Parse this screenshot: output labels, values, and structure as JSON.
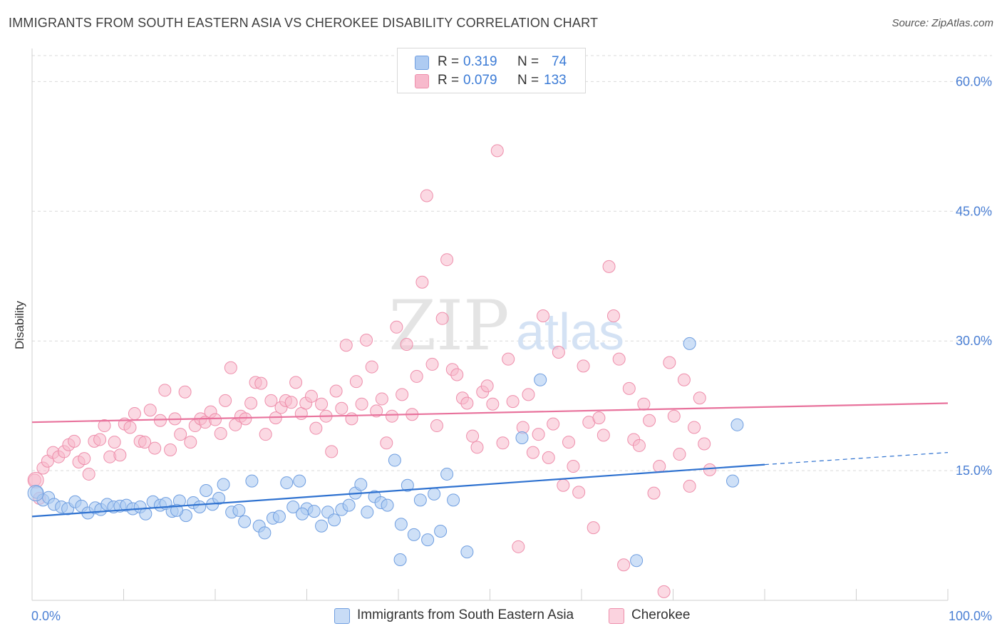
{
  "title": "IMMIGRANTS FROM SOUTH EASTERN ASIA VS CHEROKEE DISABILITY CORRELATION CHART",
  "source": "Source: ZipAtlas.com",
  "watermark": {
    "zip": "ZIP",
    "atlas": "atlas"
  },
  "legend": {
    "series1": {
      "r_label": "R =",
      "r_value": "0.319",
      "n_label": "N =",
      "n_value": "74"
    },
    "series2": {
      "r_label": "R =",
      "r_value": "0.079",
      "n_label": "N =",
      "n_value": "133"
    }
  },
  "colors": {
    "blue_fill": "#aecbf2",
    "blue_stroke": "#6f9ee0",
    "blue_line": "#2f72d0",
    "pink_fill": "#f7b9cc",
    "pink_stroke": "#ee8eab",
    "pink_line": "#e8729c",
    "tick_text": "#4a7fd4",
    "grid": "#d9d9d9"
  },
  "chart_data": {
    "type": "scatter",
    "title": "IMMIGRANTS FROM SOUTH EASTERN ASIA VS CHEROKEE DISABILITY CORRELATION CHART",
    "xlabel": "",
    "ylabel": "Disability",
    "xlim": [
      0,
      100
    ],
    "ylim": [
      0,
      63
    ],
    "x_tick_labels": [
      "0.0%",
      "100.0%"
    ],
    "y_ticks": [
      15,
      30,
      45,
      60
    ],
    "y_tick_labels": [
      "15.0%",
      "30.0%",
      "45.0%",
      "60.0%"
    ],
    "grid": "horizontal dashed",
    "legend_position": "bottom-center",
    "series": [
      {
        "name": "Immigrants from South Eastern Asia",
        "color": "#aecbf2",
        "trend": {
          "x": [
            0,
            80
          ],
          "y": [
            9.7,
            15.7
          ],
          "dashed_to": [
            100,
            17.1
          ]
        },
        "points": [
          [
            0.5,
            12.5
          ],
          [
            1.2,
            11.6
          ],
          [
            1.8,
            11.9
          ],
          [
            2.4,
            11.1
          ],
          [
            3.2,
            10.8
          ],
          [
            3.9,
            10.6
          ],
          [
            4.7,
            11.4
          ],
          [
            5.4,
            10.9
          ],
          [
            6.1,
            10.1
          ],
          [
            6.9,
            10.7
          ],
          [
            7.5,
            10.5
          ],
          [
            8.2,
            11.1
          ],
          [
            8.9,
            10.8
          ],
          [
            9.6,
            10.9
          ],
          [
            10.3,
            11.0
          ],
          [
            11.0,
            10.6
          ],
          [
            11.8,
            10.8
          ],
          [
            12.4,
            10.0
          ],
          [
            13.2,
            11.4
          ],
          [
            14.0,
            11.0
          ],
          [
            14.6,
            11.2
          ],
          [
            15.3,
            10.3
          ],
          [
            16.1,
            11.5
          ],
          [
            16.8,
            9.8
          ],
          [
            17.6,
            11.3
          ],
          [
            18.3,
            10.8
          ],
          [
            19.0,
            12.7
          ],
          [
            19.7,
            11.1
          ],
          [
            20.4,
            11.8
          ],
          [
            20.9,
            13.4
          ],
          [
            21.8,
            10.2
          ],
          [
            22.6,
            10.4
          ],
          [
            23.2,
            9.1
          ],
          [
            24.0,
            13.8
          ],
          [
            24.8,
            8.6
          ],
          [
            25.4,
            7.8
          ],
          [
            26.3,
            9.5
          ],
          [
            27.0,
            9.7
          ],
          [
            27.8,
            13.6
          ],
          [
            28.5,
            10.8
          ],
          [
            29.2,
            13.8
          ],
          [
            30.0,
            10.6
          ],
          [
            30.8,
            10.3
          ],
          [
            31.6,
            8.6
          ],
          [
            32.3,
            10.2
          ],
          [
            33.0,
            9.3
          ],
          [
            33.8,
            10.5
          ],
          [
            34.6,
            11.0
          ],
          [
            35.3,
            12.4
          ],
          [
            35.9,
            13.4
          ],
          [
            36.6,
            10.2
          ],
          [
            37.4,
            12.0
          ],
          [
            38.1,
            11.3
          ],
          [
            38.8,
            11.0
          ],
          [
            39.6,
            16.2
          ],
          [
            40.3,
            8.8
          ],
          [
            41.0,
            13.3
          ],
          [
            41.7,
            7.6
          ],
          [
            42.4,
            11.6
          ],
          [
            43.2,
            7.0
          ],
          [
            43.9,
            12.3
          ],
          [
            44.6,
            8.0
          ],
          [
            45.3,
            14.6
          ],
          [
            46.0,
            11.6
          ],
          [
            47.5,
            5.6
          ],
          [
            40.2,
            4.7
          ],
          [
            53.5,
            18.8
          ],
          [
            55.5,
            25.5
          ],
          [
            66.0,
            4.6
          ],
          [
            71.8,
            29.7
          ],
          [
            76.5,
            13.8
          ],
          [
            77.0,
            20.3
          ],
          [
            29.5,
            10.0
          ],
          [
            15.8,
            10.4
          ]
        ]
      },
      {
        "name": "Cherokee",
        "color": "#f7b9cc",
        "trend": {
          "x": [
            0,
            100
          ],
          "y": [
            20.6,
            22.8
          ]
        },
        "points": [
          [
            0.3,
            13.9
          ],
          [
            0.8,
            11.8
          ],
          [
            1.2,
            15.3
          ],
          [
            1.7,
            16.1
          ],
          [
            2.3,
            17.1
          ],
          [
            2.9,
            16.6
          ],
          [
            3.5,
            17.2
          ],
          [
            4.0,
            18.0
          ],
          [
            4.6,
            18.4
          ],
          [
            5.1,
            16.0
          ],
          [
            5.7,
            16.4
          ],
          [
            6.2,
            14.6
          ],
          [
            6.8,
            18.4
          ],
          [
            7.4,
            18.6
          ],
          [
            7.9,
            20.2
          ],
          [
            8.5,
            16.6
          ],
          [
            9.0,
            18.3
          ],
          [
            9.6,
            16.8
          ],
          [
            10.1,
            20.4
          ],
          [
            10.7,
            20.0
          ],
          [
            11.2,
            21.6
          ],
          [
            11.8,
            18.4
          ],
          [
            12.3,
            18.3
          ],
          [
            12.9,
            22.0
          ],
          [
            13.4,
            17.6
          ],
          [
            14.0,
            20.8
          ],
          [
            14.5,
            24.3
          ],
          [
            15.1,
            17.4
          ],
          [
            15.6,
            21.0
          ],
          [
            16.2,
            19.2
          ],
          [
            16.7,
            24.1
          ],
          [
            17.3,
            18.3
          ],
          [
            17.8,
            20.2
          ],
          [
            18.4,
            21.0
          ],
          [
            18.9,
            20.6
          ],
          [
            19.5,
            21.8
          ],
          [
            20.0,
            20.9
          ],
          [
            20.6,
            19.3
          ],
          [
            21.1,
            23.1
          ],
          [
            21.7,
            26.9
          ],
          [
            22.2,
            20.3
          ],
          [
            22.8,
            21.3
          ],
          [
            23.3,
            21.0
          ],
          [
            23.9,
            22.8
          ],
          [
            24.4,
            25.2
          ],
          [
            25.0,
            25.1
          ],
          [
            25.5,
            19.2
          ],
          [
            26.1,
            23.1
          ],
          [
            26.6,
            21.1
          ],
          [
            27.2,
            22.3
          ],
          [
            27.7,
            23.1
          ],
          [
            28.3,
            22.9
          ],
          [
            28.8,
            25.2
          ],
          [
            29.4,
            21.6
          ],
          [
            29.9,
            22.8
          ],
          [
            30.5,
            23.6
          ],
          [
            31.0,
            19.9
          ],
          [
            31.6,
            22.7
          ],
          [
            32.1,
            21.3
          ],
          [
            32.7,
            17.2
          ],
          [
            33.2,
            24.2
          ],
          [
            33.8,
            22.2
          ],
          [
            34.3,
            29.5
          ],
          [
            34.9,
            21.0
          ],
          [
            35.4,
            25.3
          ],
          [
            36.0,
            22.7
          ],
          [
            36.5,
            30.1
          ],
          [
            37.1,
            27.0
          ],
          [
            37.6,
            21.9
          ],
          [
            38.2,
            23.3
          ],
          [
            38.7,
            18.2
          ],
          [
            39.3,
            21.3
          ],
          [
            39.8,
            31.6
          ],
          [
            40.4,
            23.8
          ],
          [
            40.9,
            29.6
          ],
          [
            41.5,
            21.5
          ],
          [
            42.0,
            25.9
          ],
          [
            42.6,
            36.8
          ],
          [
            43.1,
            46.8
          ],
          [
            43.7,
            27.3
          ],
          [
            44.2,
            20.2
          ],
          [
            44.8,
            32.6
          ],
          [
            45.3,
            39.4
          ],
          [
            45.9,
            26.7
          ],
          [
            46.4,
            26.1
          ],
          [
            47.0,
            23.4
          ],
          [
            47.5,
            22.8
          ],
          [
            48.1,
            19.0
          ],
          [
            48.6,
            17.7
          ],
          [
            49.2,
            24.1
          ],
          [
            49.7,
            24.8
          ],
          [
            50.3,
            22.7
          ],
          [
            50.8,
            52.0
          ],
          [
            51.4,
            18.2
          ],
          [
            52.0,
            27.9
          ],
          [
            52.5,
            23.0
          ],
          [
            53.1,
            6.2
          ],
          [
            53.6,
            20.0
          ],
          [
            54.2,
            23.8
          ],
          [
            54.7,
            17.1
          ],
          [
            55.3,
            19.2
          ],
          [
            55.8,
            32.9
          ],
          [
            56.4,
            16.5
          ],
          [
            56.9,
            20.4
          ],
          [
            57.5,
            28.7
          ],
          [
            58.0,
            13.3
          ],
          [
            58.6,
            18.3
          ],
          [
            59.1,
            15.5
          ],
          [
            59.7,
            12.5
          ],
          [
            60.2,
            27.1
          ],
          [
            60.8,
            20.6
          ],
          [
            61.3,
            8.4
          ],
          [
            61.9,
            21.1
          ],
          [
            62.4,
            19.1
          ],
          [
            63.0,
            38.6
          ],
          [
            63.5,
            32.9
          ],
          [
            64.1,
            27.9
          ],
          [
            64.6,
            4.1
          ],
          [
            65.2,
            24.5
          ],
          [
            65.7,
            18.6
          ],
          [
            66.3,
            17.9
          ],
          [
            66.8,
            22.7
          ],
          [
            67.4,
            20.8
          ],
          [
            67.9,
            12.4
          ],
          [
            68.5,
            15.5
          ],
          [
            69.0,
            1.0
          ],
          [
            69.6,
            27.5
          ],
          [
            70.1,
            21.3
          ],
          [
            70.7,
            16.9
          ],
          [
            71.2,
            25.5
          ],
          [
            71.8,
            13.2
          ],
          [
            72.3,
            20.0
          ],
          [
            72.9,
            23.4
          ],
          [
            73.4,
            18.1
          ],
          [
            74.0,
            15.1
          ]
        ]
      }
    ]
  }
}
